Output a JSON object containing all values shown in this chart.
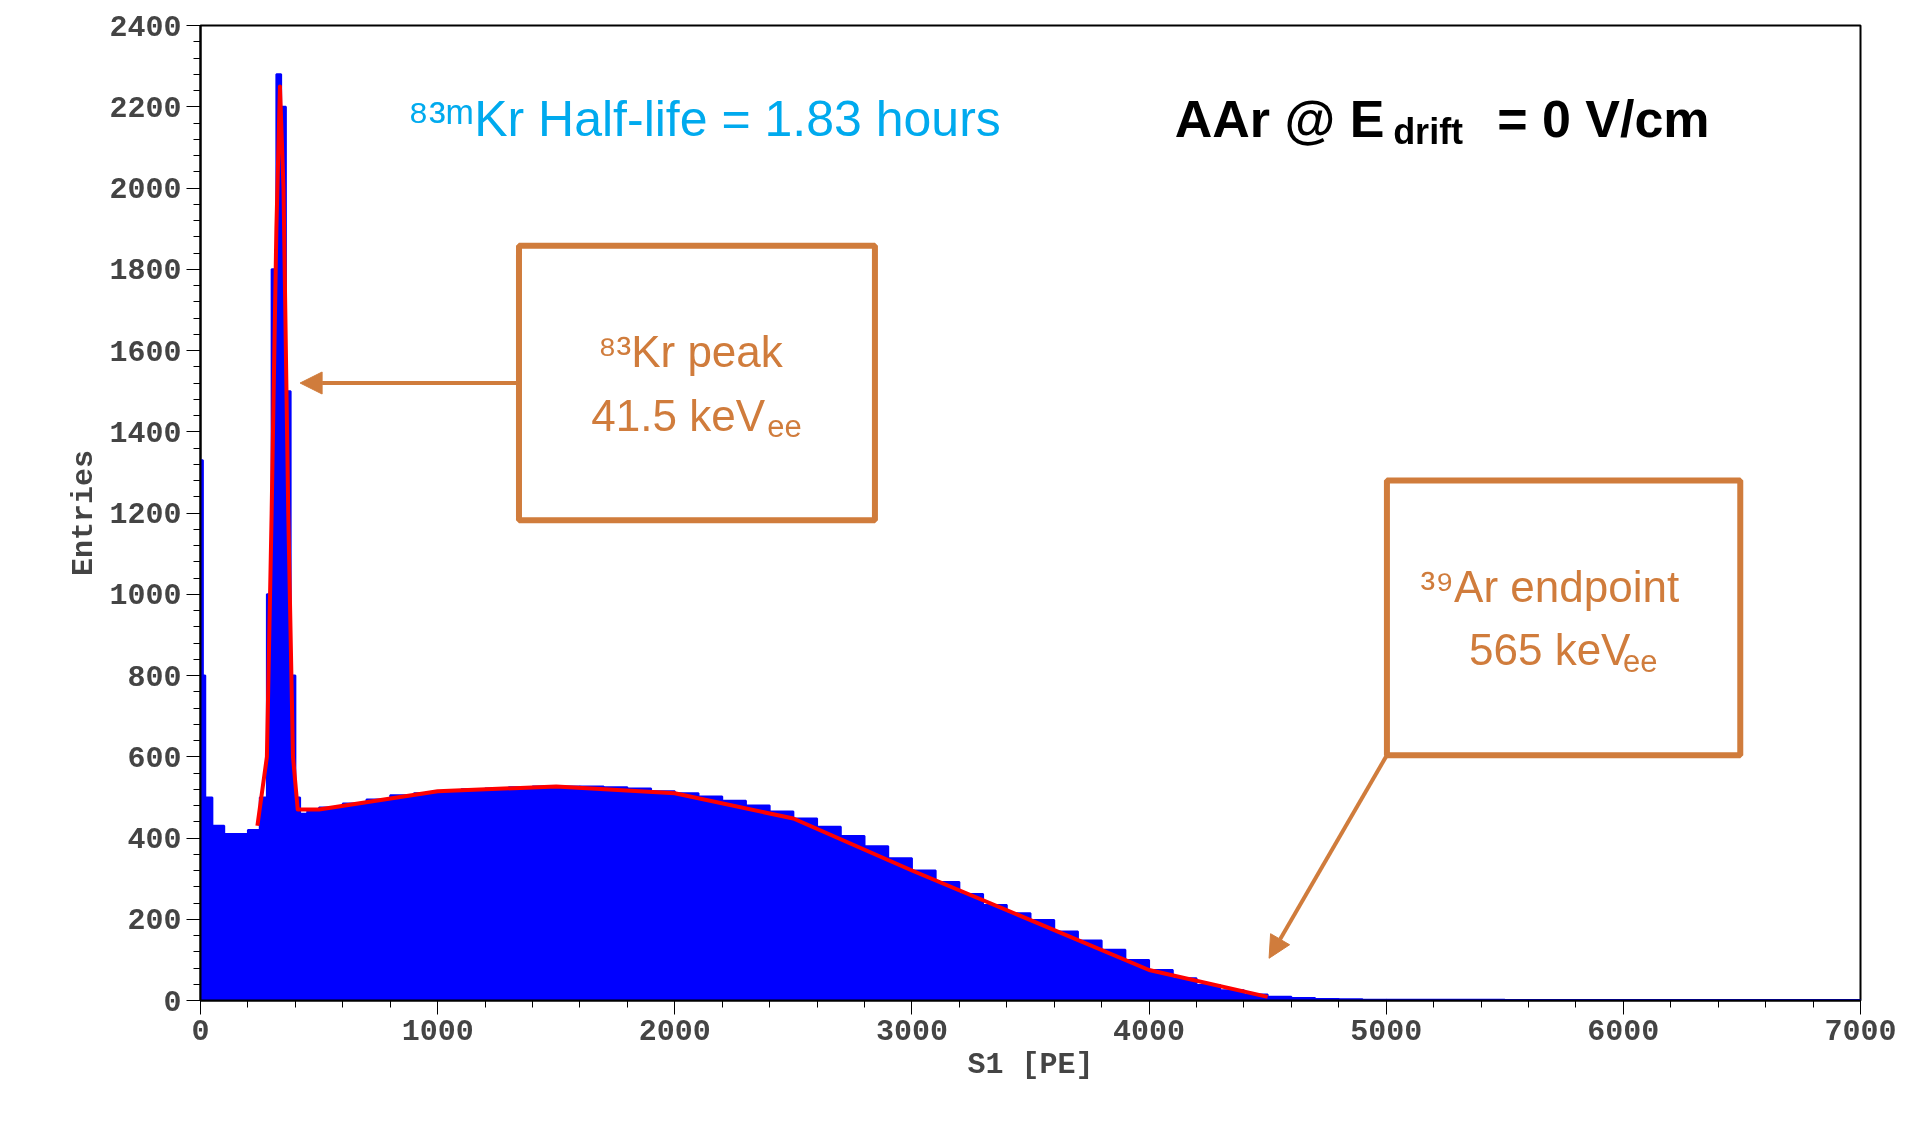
{
  "chart_data": {
    "type": "histogram",
    "xlabel": "S1 [PE]",
    "ylabel": "Entries",
    "bins": [
      0,
      10,
      20,
      50,
      100,
      150,
      200,
      250,
      280,
      300,
      320,
      340,
      360,
      380,
      400,
      420,
      450,
      500,
      600,
      700,
      800,
      900,
      1000,
      1100,
      1200,
      1300,
      1400,
      1500,
      1600,
      1700,
      1800,
      1900,
      2000,
      2100,
      2200,
      2300,
      2400,
      2500,
      2600,
      2700,
      2800,
      2900,
      3000,
      3100,
      3200,
      3300,
      3400,
      3500,
      3600,
      3700,
      3800,
      3900,
      4000,
      4100,
      4200,
      4300,
      4400,
      4500,
      4600,
      4700,
      4800,
      4900,
      5000,
      5500,
      6000,
      6500,
      7000
    ],
    "values": [
      1330,
      800,
      500,
      430,
      410,
      410,
      420,
      500,
      1000,
      1800,
      2280,
      2200,
      1500,
      800,
      500,
      460,
      465,
      475,
      485,
      495,
      505,
      510,
      515,
      520,
      522,
      525,
      527,
      527,
      527,
      525,
      522,
      515,
      510,
      502,
      492,
      480,
      465,
      448,
      428,
      405,
      380,
      350,
      320,
      292,
      262,
      235,
      215,
      198,
      170,
      148,
      125,
      100,
      75,
      55,
      38,
      25,
      15,
      9,
      6,
      4,
      3,
      2,
      2,
      1,
      1,
      1
    ],
    "color": "#0000ff",
    "series": [
      {
        "type": "line",
        "color": "#ff0000",
        "x": [
          240,
          280,
          300,
          320,
          335,
          350,
          370,
          390,
          410,
          500,
          1000,
          1500,
          2000,
          2500,
          3000,
          3500,
          4000,
          4500
        ],
        "values": [
          430,
          600,
          1200,
          1900,
          2250,
          2000,
          1200,
          600,
          470,
          470,
          515,
          527,
          510,
          448,
          320,
          198,
          75,
          9
        ]
      }
    ],
    "xlim": [
      0,
      7000
    ],
    "ylim": [
      0,
      2400
    ],
    "xticks": [
      0,
      1000,
      2000,
      3000,
      4000,
      5000,
      6000,
      7000
    ],
    "yticks": [
      0,
      200,
      400,
      600,
      800,
      1000,
      1200,
      1400,
      1600,
      1800,
      2000,
      2200,
      2400
    ],
    "grid": false,
    "annotations": [
      "⁸³ᵐKr Half-life = 1.83 hours",
      "AAr @ E$_{drift}$ = 0 V/cm",
      "⁸³Kr peak\n41.5 keV$_{ee}$",
      "³⁹Ar endpoint\n565 keV$_{ee}$"
    ]
  }
}
